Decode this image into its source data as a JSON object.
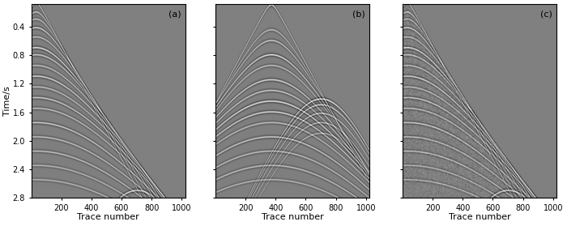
{
  "chart_data": [
    {
      "type": "image",
      "label": "(a)",
      "xlabel": "Trace number",
      "ylabel": "Time/s",
      "xlim": [
        1,
        1024
      ],
      "ylim": [
        2.8,
        0.08
      ],
      "xticks": [
        200,
        400,
        600,
        800,
        1000
      ],
      "yticks": [
        0.4,
        0.8,
        1.2,
        1.6,
        2.0,
        2.4,
        2.8
      ],
      "apex_trace": [
        30,
        30,
        30,
        30,
        30,
        30,
        30,
        30,
        30,
        30,
        30,
        30,
        30,
        30,
        30,
        30,
        30,
        700
      ],
      "apex_time": [
        0.07,
        0.2,
        0.3,
        0.42,
        0.55,
        0.7,
        0.8,
        0.95,
        1.1,
        1.25,
        1.4,
        1.55,
        1.75,
        1.95,
        2.15,
        2.35,
        2.55,
        2.7
      ],
      "moveout": [
        250,
        260,
        270,
        280,
        290,
        300,
        310,
        320,
        330,
        340,
        350,
        360,
        370,
        380,
        390,
        400,
        410,
        150
      ],
      "amplitude": [
        1.0,
        0.7,
        0.6,
        0.8,
        0.6,
        0.9,
        0.7,
        0.6,
        0.8,
        0.6,
        0.7,
        0.6,
        0.7,
        0.6,
        0.6,
        0.5,
        0.5,
        0.9
      ],
      "noise_level": 0
    },
    {
      "type": "image",
      "label": "(b)",
      "xlabel": "Trace number",
      "xlim": [
        1,
        1024
      ],
      "ylim": [
        2.8,
        0.08
      ],
      "xticks": [
        200,
        400,
        600,
        800,
        1000
      ],
      "yticks": [
        0.4,
        0.8,
        1.2,
        1.6,
        2.0,
        2.4,
        2.8
      ],
      "tick_labels": "x",
      "apex_trace": [
        370,
        370,
        370,
        370,
        370,
        370,
        370,
        370,
        370,
        370,
        370,
        370,
        370,
        370,
        700,
        700,
        700,
        700,
        700
      ],
      "apex_time": [
        0.1,
        0.45,
        0.6,
        0.8,
        0.95,
        1.15,
        1.3,
        1.45,
        1.6,
        1.75,
        1.95,
        2.15,
        2.35,
        2.55,
        1.42,
        1.5,
        1.62,
        1.75,
        1.9
      ],
      "moveout": [
        250,
        260,
        270,
        280,
        290,
        300,
        310,
        320,
        330,
        340,
        350,
        360,
        370,
        380,
        200,
        200,
        200,
        200,
        200
      ],
      "amplitude": [
        1.0,
        0.6,
        0.7,
        0.9,
        0.6,
        0.8,
        0.7,
        0.9,
        0.8,
        0.6,
        0.7,
        0.6,
        0.6,
        0.5,
        1.0,
        0.8,
        0.7,
        0.6,
        0.5
      ],
      "noise_level": 0
    },
    {
      "type": "image",
      "label": "(c)",
      "xlabel": "Trace number",
      "xlim": [
        1,
        1024
      ],
      "ylim": [
        2.8,
        0.08
      ],
      "xticks": [
        200,
        400,
        600,
        800,
        1000
      ],
      "yticks": [
        0.4,
        0.8,
        1.2,
        1.6,
        2.0,
        2.4,
        2.8
      ],
      "tick_labels": "x",
      "apex_trace": [
        30,
        30,
        30,
        30,
        30,
        30,
        30,
        30,
        30,
        30,
        30,
        30,
        30,
        30,
        30,
        30,
        30,
        700
      ],
      "apex_time": [
        0.07,
        0.2,
        0.3,
        0.42,
        0.55,
        0.7,
        0.8,
        0.95,
        1.1,
        1.25,
        1.4,
        1.55,
        1.75,
        1.95,
        2.15,
        2.35,
        2.55,
        2.7
      ],
      "moveout": [
        250,
        260,
        270,
        280,
        290,
        300,
        310,
        320,
        330,
        340,
        350,
        360,
        370,
        380,
        390,
        400,
        410,
        150
      ],
      "amplitude": [
        1.0,
        0.7,
        0.6,
        0.8,
        0.6,
        0.9,
        0.7,
        0.6,
        0.8,
        0.6,
        0.7,
        0.6,
        0.7,
        0.6,
        0.6,
        0.5,
        0.5,
        0.9
      ],
      "noise_level": 0.35
    }
  ]
}
